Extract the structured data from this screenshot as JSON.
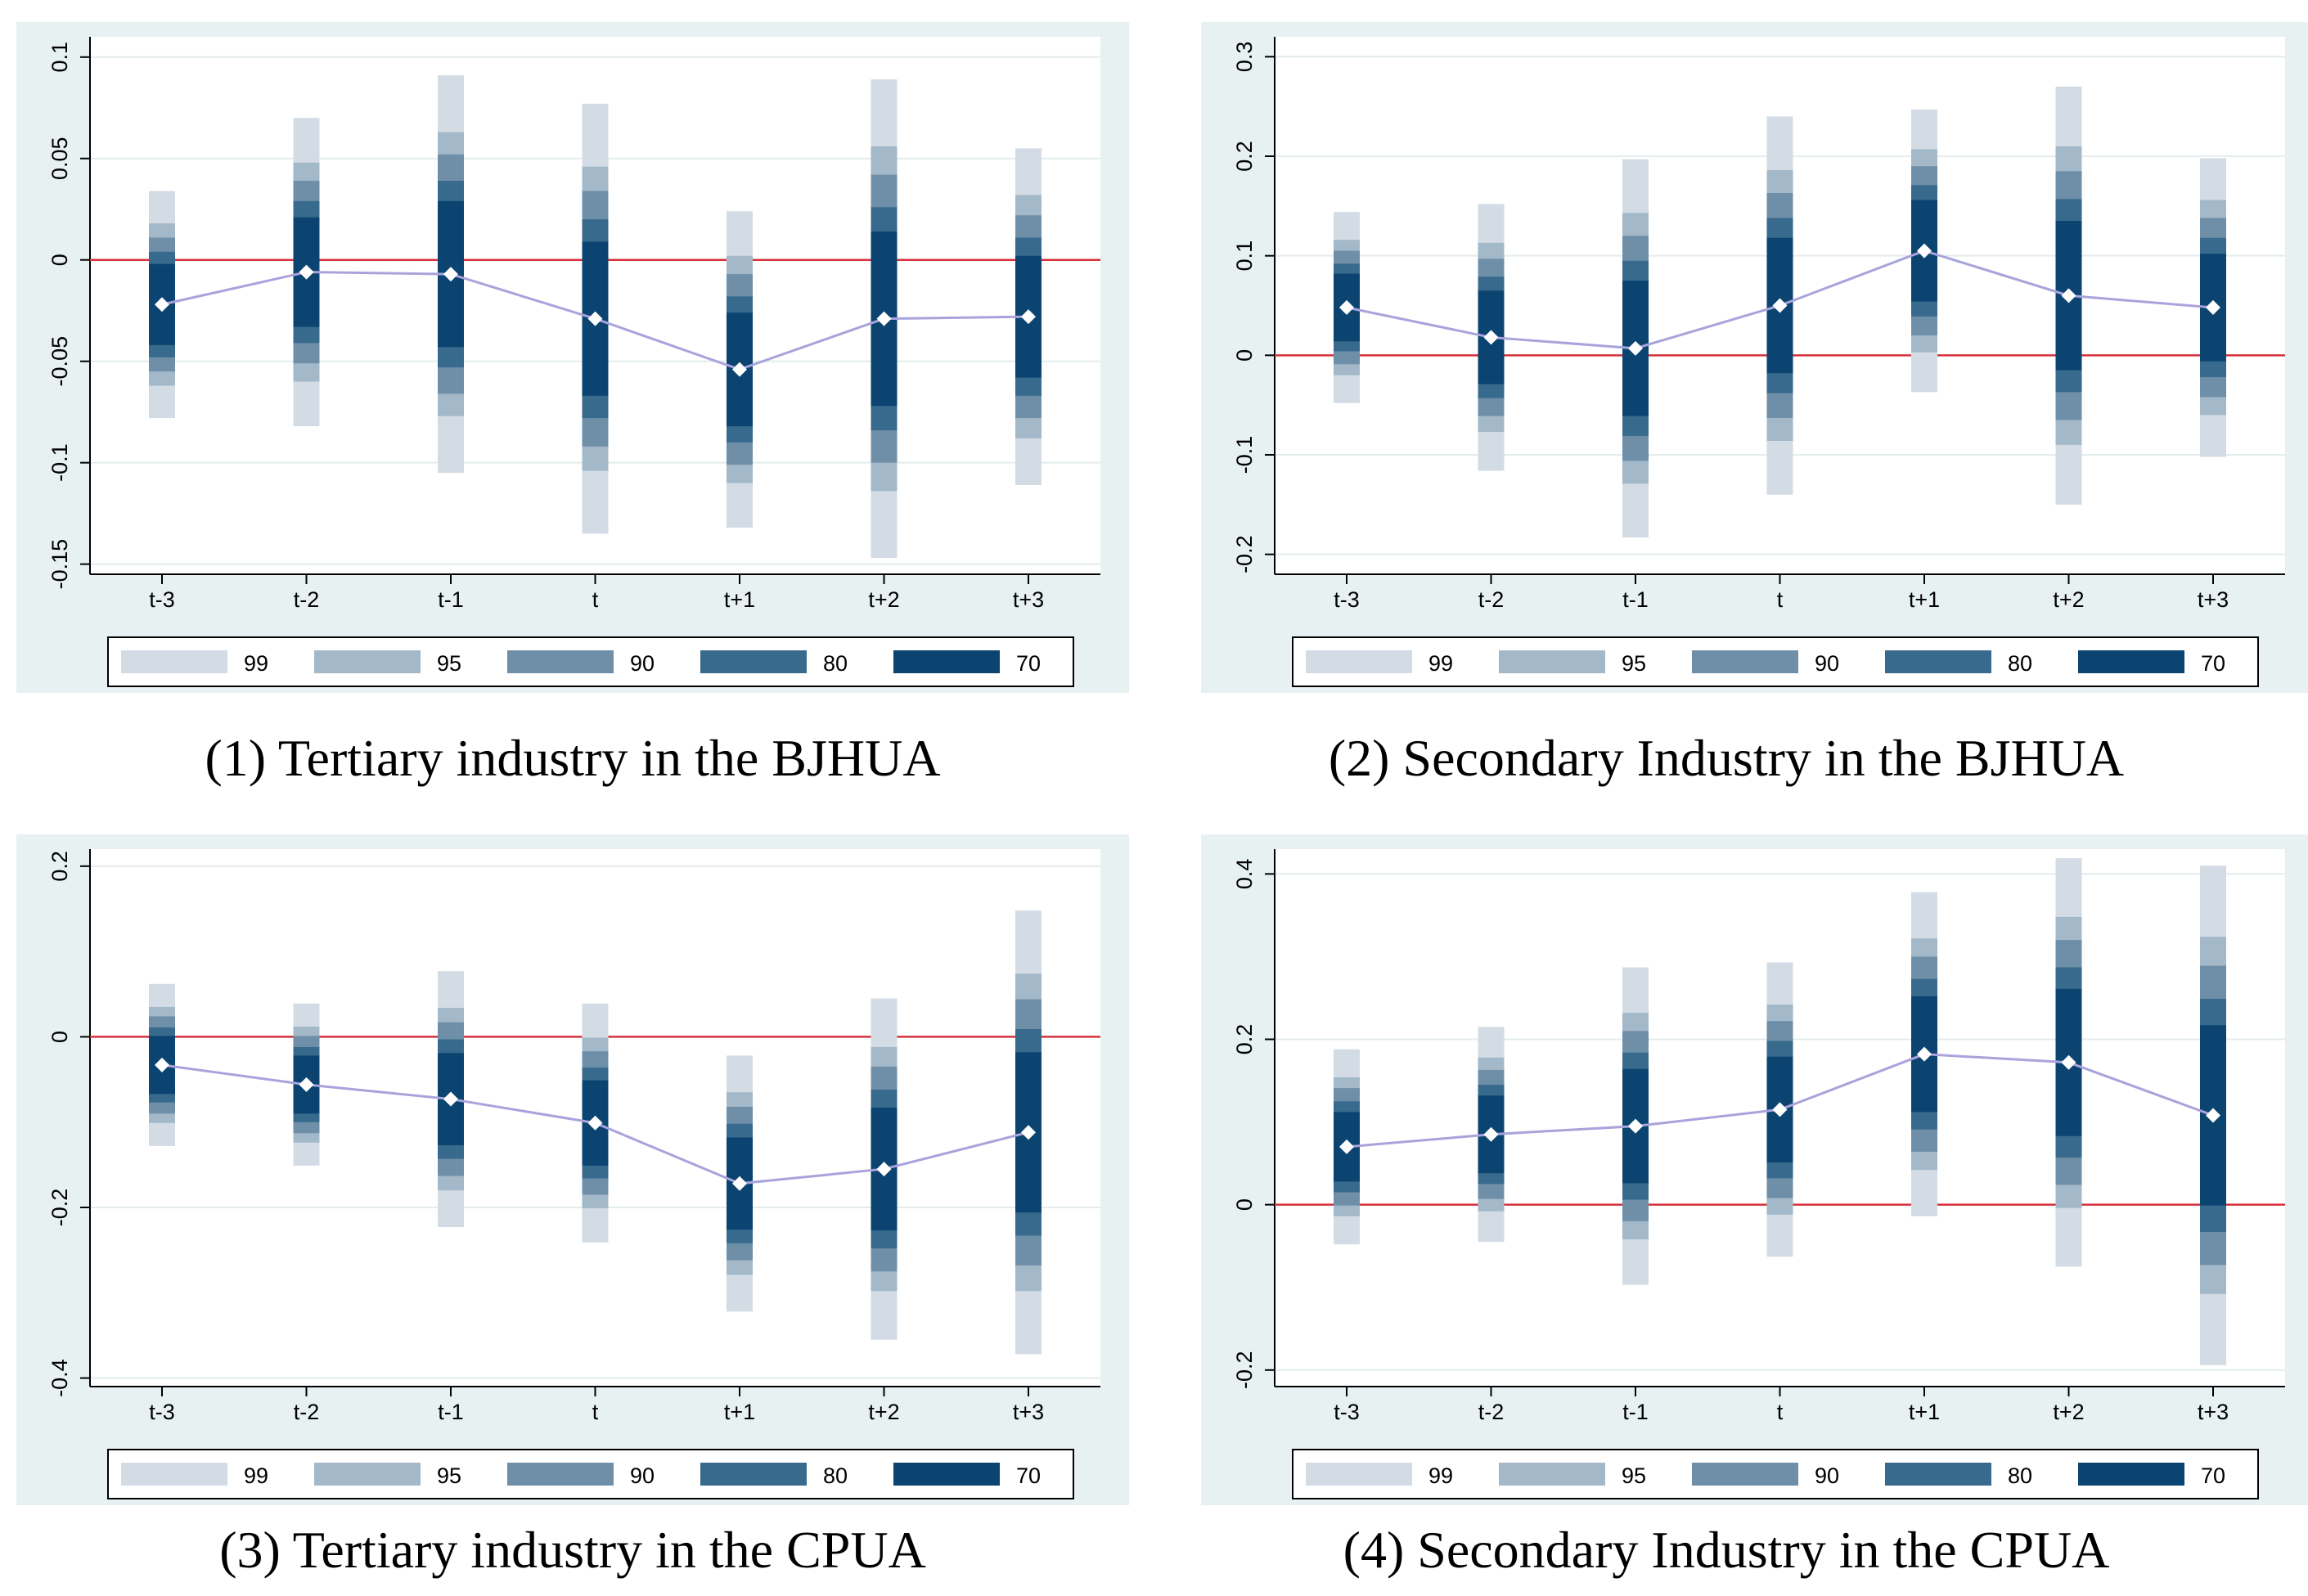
{
  "colors": {
    "ci99": "#d3dce4",
    "ci95": "#a3b8c8",
    "ci90": "#6f8fa9",
    "ci80": "#376a8c",
    "ci70": "#0b4470",
    "zero_line": "#d6303a",
    "trend_line": "#a9a3dc",
    "panel_bg": "#e8f1f1"
  },
  "legend_levels": [
    "99",
    "95",
    "90",
    "80",
    "70"
  ],
  "chart_data": [
    {
      "type": "coefficient-plot",
      "title": "(1) Tertiary industry in the BJHUA",
      "categories": [
        "t-3",
        "t-2",
        "t-1",
        "t",
        "t+1",
        "t+2",
        "t+3"
      ],
      "ylim": [
        -0.155,
        0.11
      ],
      "yticks": [
        0.1,
        0.05,
        0,
        -0.05,
        -0.1,
        -0.15
      ],
      "ytick_labels": [
        "0.1",
        "0.05",
        "0",
        "-0.05",
        "-0.1",
        "-0.15"
      ],
      "estimates": [
        -0.022,
        -0.006,
        -0.007,
        -0.029,
        -0.054,
        -0.029,
        -0.028
      ],
      "ci_halfwidths": {
        "99": [
          0.056,
          0.076,
          0.098,
          0.106,
          0.078,
          0.118,
          0.083
        ],
        "95": [
          0.04,
          0.054,
          0.07,
          0.075,
          0.056,
          0.085,
          0.06
        ],
        "90": [
          0.033,
          0.045,
          0.059,
          0.063,
          0.047,
          0.071,
          0.05
        ],
        "80": [
          0.026,
          0.035,
          0.046,
          0.049,
          0.036,
          0.055,
          0.039
        ],
        "70": [
          0.02,
          0.027,
          0.036,
          0.038,
          0.028,
          0.043,
          0.03
        ]
      }
    },
    {
      "type": "coefficient-plot",
      "title": "(2) Secondary Industry in the BJHUA",
      "categories": [
        "t-3",
        "t-2",
        "t-1",
        "t",
        "t+1",
        "t+2",
        "t+3"
      ],
      "ylim": [
        -0.22,
        0.32
      ],
      "yticks": [
        0.3,
        0.2,
        0.1,
        0,
        -0.1,
        -0.2
      ],
      "ytick_labels": [
        "0.3",
        "0.2",
        "0.1",
        "0",
        "-0.1",
        "-0.2"
      ],
      "estimates": [
        0.048,
        0.018,
        0.007,
        0.05,
        0.105,
        0.06,
        0.048
      ],
      "ci_halfwidths": {
        "99": [
          0.096,
          0.134,
          0.19,
          0.19,
          0.142,
          0.21,
          0.15
        ],
        "95": [
          0.068,
          0.095,
          0.136,
          0.136,
          0.102,
          0.15,
          0.108
        ],
        "90": [
          0.057,
          0.079,
          0.113,
          0.113,
          0.085,
          0.125,
          0.09
        ],
        "80": [
          0.044,
          0.061,
          0.088,
          0.088,
          0.066,
          0.097,
          0.07
        ],
        "70": [
          0.034,
          0.047,
          0.068,
          0.068,
          0.051,
          0.075,
          0.054
        ]
      }
    },
    {
      "type": "coefficient-plot",
      "title": "(3) Tertiary industry in the CPUA",
      "categories": [
        "t-3",
        "t-2",
        "t-1",
        "t",
        "t+1",
        "t+2",
        "t+3"
      ],
      "ylim": [
        -0.41,
        0.22
      ],
      "yticks": [
        0.2,
        0,
        -0.2,
        -0.4
      ],
      "ytick_labels": [
        "0.2",
        "0",
        "-0.2",
        "-0.4"
      ],
      "estimates": [
        -0.033,
        -0.056,
        -0.073,
        -0.101,
        -0.172,
        -0.155,
        -0.112
      ],
      "ci_halfwidths": {
        "99": [
          0.095,
          0.095,
          0.15,
          0.14,
          0.15,
          0.2,
          0.26
        ],
        "95": [
          0.068,
          0.068,
          0.107,
          0.1,
          0.107,
          0.143,
          0.186
        ],
        "90": [
          0.057,
          0.057,
          0.09,
          0.084,
          0.09,
          0.12,
          0.156
        ],
        "80": [
          0.044,
          0.044,
          0.07,
          0.065,
          0.07,
          0.093,
          0.121
        ],
        "70": [
          0.034,
          0.034,
          0.054,
          0.05,
          0.054,
          0.072,
          0.094
        ]
      }
    },
    {
      "type": "coefficient-plot",
      "title": "(4) Secondary Industry in the CPUA",
      "categories": [
        "t-3",
        "t-2",
        "t-1",
        "t",
        "t+1",
        "t+2",
        "t+3"
      ],
      "ylim": [
        -0.22,
        0.43
      ],
      "yticks": [
        0.4,
        0.2,
        0,
        -0.2
      ],
      "ytick_labels": [
        "0.4",
        "0.2",
        "0",
        "-0.2"
      ],
      "estimates": [
        0.07,
        0.085,
        0.095,
        0.115,
        0.182,
        0.172,
        0.108
      ],
      "ci_halfwidths": {
        "99": [
          0.118,
          0.13,
          0.192,
          0.178,
          0.196,
          0.247,
          0.302
        ],
        "95": [
          0.084,
          0.093,
          0.137,
          0.127,
          0.14,
          0.176,
          0.216
        ],
        "90": [
          0.071,
          0.078,
          0.115,
          0.107,
          0.118,
          0.148,
          0.181
        ],
        "80": [
          0.055,
          0.06,
          0.089,
          0.083,
          0.091,
          0.115,
          0.141
        ],
        "70": [
          0.042,
          0.047,
          0.069,
          0.064,
          0.07,
          0.089,
          0.109
        ]
      }
    }
  ]
}
